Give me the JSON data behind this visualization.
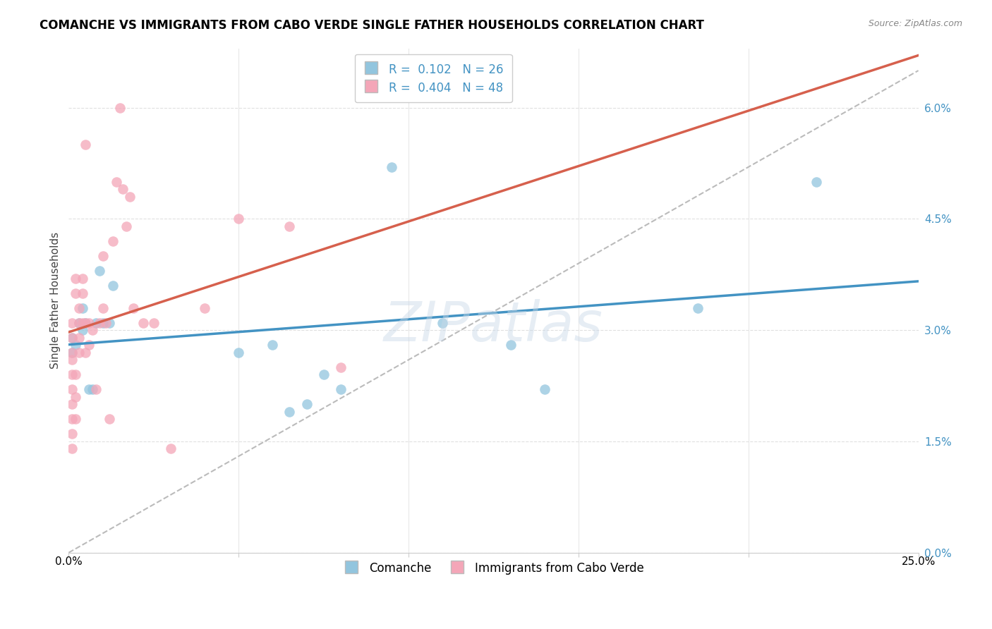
{
  "title": "COMANCHE VS IMMIGRANTS FROM CABO VERDE SINGLE FATHER HOUSEHOLDS CORRELATION CHART",
  "source": "Source: ZipAtlas.com",
  "ylabel": "Single Father Households",
  "legend_blue_r_text": "R =  0.102",
  "legend_blue_n_text": "N = 26",
  "legend_pink_r_text": "R =  0.404",
  "legend_pink_n_text": "N = 48",
  "legend_label_blue": "Comanche",
  "legend_label_pink": "Immigrants from Cabo Verde",
  "blue_scatter_color": "#92c5de",
  "pink_scatter_color": "#f4a6b8",
  "blue_line_color": "#4393c3",
  "pink_line_color": "#d6604d",
  "dashed_line_color": "#bbbbbb",
  "right_ytick_vals": [
    0.0,
    0.015,
    0.03,
    0.045,
    0.06
  ],
  "right_yticks": [
    "0.0%",
    "1.5%",
    "3.0%",
    "4.5%",
    "6.0%"
  ],
  "right_ytick_color": "#4393c3",
  "xlim": [
    0.0,
    0.25
  ],
  "ylim": [
    0.0,
    0.068
  ],
  "blue_points": [
    [
      0.001,
      0.029
    ],
    [
      0.001,
      0.027
    ],
    [
      0.002,
      0.028
    ],
    [
      0.003,
      0.031
    ],
    [
      0.004,
      0.03
    ],
    [
      0.004,
      0.033
    ],
    [
      0.005,
      0.031
    ],
    [
      0.006,
      0.022
    ],
    [
      0.007,
      0.022
    ],
    [
      0.008,
      0.031
    ],
    [
      0.009,
      0.038
    ],
    [
      0.01,
      0.031
    ],
    [
      0.012,
      0.031
    ],
    [
      0.013,
      0.036
    ],
    [
      0.05,
      0.027
    ],
    [
      0.06,
      0.028
    ],
    [
      0.065,
      0.019
    ],
    [
      0.07,
      0.02
    ],
    [
      0.075,
      0.024
    ],
    [
      0.08,
      0.022
    ],
    [
      0.095,
      0.052
    ],
    [
      0.11,
      0.031
    ],
    [
      0.13,
      0.028
    ],
    [
      0.14,
      0.022
    ],
    [
      0.185,
      0.033
    ],
    [
      0.22,
      0.05
    ]
  ],
  "pink_points": [
    [
      0.001,
      0.026
    ],
    [
      0.001,
      0.024
    ],
    [
      0.001,
      0.022
    ],
    [
      0.001,
      0.02
    ],
    [
      0.001,
      0.018
    ],
    [
      0.001,
      0.016
    ],
    [
      0.001,
      0.014
    ],
    [
      0.001,
      0.027
    ],
    [
      0.001,
      0.029
    ],
    [
      0.001,
      0.031
    ],
    [
      0.002,
      0.018
    ],
    [
      0.002,
      0.021
    ],
    [
      0.002,
      0.024
    ],
    [
      0.002,
      0.035
    ],
    [
      0.002,
      0.037
    ],
    [
      0.003,
      0.031
    ],
    [
      0.003,
      0.033
    ],
    [
      0.003,
      0.027
    ],
    [
      0.003,
      0.029
    ],
    [
      0.004,
      0.031
    ],
    [
      0.004,
      0.035
    ],
    [
      0.004,
      0.037
    ],
    [
      0.005,
      0.027
    ],
    [
      0.005,
      0.055
    ],
    [
      0.005,
      0.031
    ],
    [
      0.006,
      0.028
    ],
    [
      0.006,
      0.031
    ],
    [
      0.007,
      0.03
    ],
    [
      0.008,
      0.022
    ],
    [
      0.009,
      0.031
    ],
    [
      0.01,
      0.033
    ],
    [
      0.01,
      0.04
    ],
    [
      0.011,
      0.031
    ],
    [
      0.012,
      0.018
    ],
    [
      0.013,
      0.042
    ],
    [
      0.014,
      0.05
    ],
    [
      0.015,
      0.06
    ],
    [
      0.016,
      0.049
    ],
    [
      0.017,
      0.044
    ],
    [
      0.018,
      0.048
    ],
    [
      0.019,
      0.033
    ],
    [
      0.022,
      0.031
    ],
    [
      0.025,
      0.031
    ],
    [
      0.03,
      0.014
    ],
    [
      0.04,
      0.033
    ],
    [
      0.05,
      0.045
    ],
    [
      0.065,
      0.044
    ],
    [
      0.08,
      0.025
    ]
  ],
  "blue_line_x": [
    0.0,
    0.25
  ],
  "blue_line_y": [
    0.0265,
    0.03
  ],
  "pink_line_x": [
    0.0,
    0.09
  ],
  "pink_line_y": [
    0.0245,
    0.046
  ],
  "diag_line_x": [
    0.0,
    0.25
  ],
  "diag_line_y": [
    0.0,
    0.065
  ]
}
